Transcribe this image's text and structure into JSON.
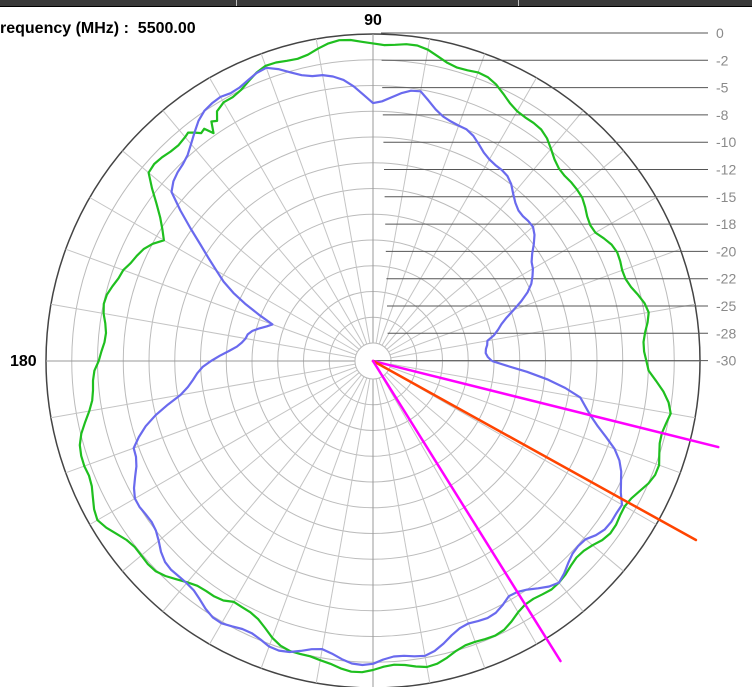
{
  "header": {
    "frequency_label": "requency (MHz) :  5500.00"
  },
  "chart_data": {
    "type": "polar",
    "angle_labels": [
      "90",
      "180"
    ],
    "radial_ticks": [
      "0",
      "-2",
      "-5",
      "-8",
      "-10",
      "-12",
      "-15",
      "-18",
      "-20",
      "-22",
      "-25",
      "-28",
      "-30"
    ],
    "radial_range_db": [
      -30,
      0
    ],
    "grid": true,
    "series": [
      {
        "color": "#1fbf1f",
        "points": [
          [
            0,
            -5.2
          ],
          [
            10,
            -4.9
          ],
          [
            20,
            -5.8
          ],
          [
            30,
            -6.6
          ],
          [
            40,
            -6.2
          ],
          [
            50,
            -4.9
          ],
          [
            60,
            -3.4
          ],
          [
            70,
            -2.1
          ],
          [
            80,
            -1.3
          ],
          [
            90,
            -0.6
          ],
          [
            100,
            -0.9
          ],
          [
            110,
            -1.6
          ],
          [
            120,
            -2.6
          ],
          [
            125,
            -4.4
          ],
          [
            130,
            -3.1
          ],
          [
            140,
            -3.6
          ],
          [
            150,
            -8.4
          ],
          [
            160,
            -5.6
          ],
          [
            170,
            -5.3
          ],
          [
            180,
            -5.4
          ],
          [
            190,
            -3.5
          ],
          [
            200,
            -1.8
          ],
          [
            210,
            -1.2
          ],
          [
            220,
            -2.3
          ],
          [
            230,
            -3.4
          ],
          [
            240,
            -5.0
          ],
          [
            250,
            -3.3
          ],
          [
            260,
            -1.9
          ],
          [
            270,
            -1.8
          ],
          [
            280,
            -1.9
          ],
          [
            290,
            -2.5
          ],
          [
            300,
            -3.4
          ],
          [
            310,
            -4.0
          ],
          [
            320,
            -3.9
          ],
          [
            330,
            -3.2
          ],
          [
            340,
            -2.4
          ],
          [
            350,
            -2.6
          ],
          [
            360,
            -5.2
          ]
        ]
      },
      {
        "color": "#6a6aee",
        "points": [
          [
            0,
            -20.2
          ],
          [
            10,
            -20.8
          ],
          [
            20,
            -17.0
          ],
          [
            30,
            -13.6
          ],
          [
            40,
            -11.8
          ],
          [
            50,
            -10.6
          ],
          [
            60,
            -8.8
          ],
          [
            70,
            -7.6
          ],
          [
            80,
            -5.4
          ],
          [
            90,
            -6.4
          ],
          [
            100,
            -3.5
          ],
          [
            110,
            -1.8
          ],
          [
            120,
            -2.0
          ],
          [
            130,
            -4.0
          ],
          [
            140,
            -6.5
          ],
          [
            150,
            -14.3
          ],
          [
            160,
            -21.0
          ],
          [
            170,
            -19.3
          ],
          [
            180,
            -16.3
          ],
          [
            190,
            -12.5
          ],
          [
            200,
            -6.9
          ],
          [
            210,
            -5.4
          ],
          [
            220,
            -4.5
          ],
          [
            230,
            -3.3
          ],
          [
            240,
            -2.6
          ],
          [
            250,
            -2.4
          ],
          [
            260,
            -3.0
          ],
          [
            270,
            -2.4
          ],
          [
            280,
            -3.0
          ],
          [
            290,
            -4.4
          ],
          [
            300,
            -5.2
          ],
          [
            310,
            -4.0
          ],
          [
            320,
            -4.8
          ],
          [
            330,
            -3.5
          ],
          [
            340,
            -7.0
          ],
          [
            350,
            -11.5
          ],
          [
            360,
            -20.2
          ]
        ]
      }
    ],
    "markers": [
      {
        "color": "#ff00ff",
        "angle": 346,
        "value": 2.8
      },
      {
        "color": "#ff4400",
        "angle": 331,
        "value": 4.1
      },
      {
        "color": "#ff00ff",
        "angle": 302,
        "value": 2.6
      }
    ]
  }
}
